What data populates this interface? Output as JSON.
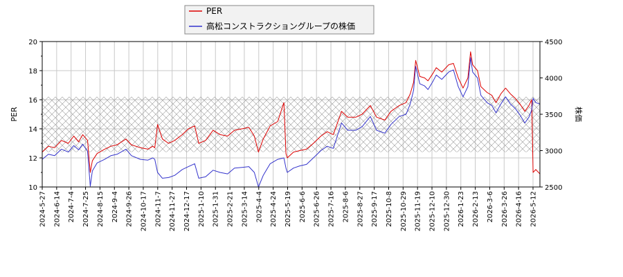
{
  "chart_data": {
    "type": "line",
    "legend": {
      "placement": "top-center",
      "entries": [
        {
          "label": "PER",
          "color": "#dd0000"
        },
        {
          "label": "高松コンストラクショングループの株価",
          "color": "#3333cc"
        }
      ]
    },
    "ylabel_left": "PER",
    "ylabel_right": "株価",
    "ylim_left": [
      10,
      20
    ],
    "ylim_right": [
      2500,
      4500
    ],
    "yticks_left": [
      "10",
      "12",
      "14",
      "16",
      "18",
      "20"
    ],
    "yticks_right": [
      "2500",
      "3000",
      "3500",
      "4000",
      "4500"
    ],
    "x_tick_labels": [
      "2024-5-27",
      "2024-6-14",
      "2024-7-4",
      "2024-7-25",
      "2024-8-15",
      "2024-9-4",
      "2024-9-26",
      "2024-10-17",
      "2024-11-7",
      "2024-11-27",
      "2024-12-17",
      "2025-1-10",
      "2025-1-31",
      "2025-2-21",
      "2025-3-14",
      "2025-4-4",
      "2025-4-24",
      "2025-5-19",
      "2025-6-6",
      "2025-6-26",
      "2025-7-16",
      "2025-8-6",
      "2025-8-27",
      "2025-9-17",
      "2025-10-8",
      "2025-10-29",
      "2025-11-19",
      "2025-12-10",
      "2025-12-30",
      "2026-1-23",
      "2026-2-13",
      "2026-3-6",
      "2026-3-26",
      "2026-4-16",
      "2026-5-12"
    ],
    "x_start": "2024-5-27",
    "x_end": "2026-5-22",
    "shaded_band_per": [
      12.4,
      16.2
    ],
    "grid": true,
    "series": [
      {
        "name": "PER",
        "color": "#dd0000",
        "axis": "left",
        "points": [
          [
            "2024-5-27",
            12.4
          ],
          [
            "2024-6-5",
            12.8
          ],
          [
            "2024-6-14",
            12.7
          ],
          [
            "2024-6-24",
            13.2
          ],
          [
            "2024-7-4",
            13.0
          ],
          [
            "2024-7-12",
            13.5
          ],
          [
            "2024-7-19",
            13.1
          ],
          [
            "2024-7-25",
            13.6
          ],
          [
            "2024-8-1",
            13.2
          ],
          [
            "2024-8-5",
            11.0
          ],
          [
            "2024-8-8",
            11.8
          ],
          [
            "2024-8-15",
            12.3
          ],
          [
            "2024-8-26",
            12.6
          ],
          [
            "2024-9-4",
            12.8
          ],
          [
            "2024-9-13",
            12.9
          ],
          [
            "2024-9-26",
            13.3
          ],
          [
            "2024-10-4",
            12.9
          ],
          [
            "2024-10-17",
            12.7
          ],
          [
            "2024-10-28",
            12.6
          ],
          [
            "2024-11-4",
            12.8
          ],
          [
            "2024-11-7",
            12.7
          ],
          [
            "2024-11-11",
            14.3
          ],
          [
            "2024-11-18",
            13.3
          ],
          [
            "2024-11-27",
            13.0
          ],
          [
            "2024-12-6",
            13.2
          ],
          [
            "2024-12-17",
            13.6
          ],
          [
            "2024-12-26",
            14.0
          ],
          [
            "2025-1-4",
            14.2
          ],
          [
            "2025-1-10",
            13.0
          ],
          [
            "2025-1-20",
            13.2
          ],
          [
            "2025-1-31",
            13.9
          ],
          [
            "2025-2-10",
            13.6
          ],
          [
            "2025-2-21",
            13.5
          ],
          [
            "2025-3-3",
            13.9
          ],
          [
            "2025-3-14",
            14.0
          ],
          [
            "2025-3-24",
            14.1
          ],
          [
            "2025-4-1",
            13.5
          ],
          [
            "2025-4-7",
            12.4
          ],
          [
            "2025-4-14",
            13.3
          ],
          [
            "2025-4-24",
            14.2
          ],
          [
            "2025-5-5",
            14.5
          ],
          [
            "2025-5-14",
            15.8
          ],
          [
            "2025-5-17",
            12.3
          ],
          [
            "2025-5-19",
            12.0
          ],
          [
            "2025-5-28",
            12.4
          ],
          [
            "2025-6-6",
            12.5
          ],
          [
            "2025-6-16",
            12.6
          ],
          [
            "2025-6-26",
            13.0
          ],
          [
            "2025-7-7",
            13.5
          ],
          [
            "2025-7-16",
            13.8
          ],
          [
            "2025-7-25",
            13.6
          ],
          [
            "2025-8-6",
            15.2
          ],
          [
            "2025-8-15",
            14.8
          ],
          [
            "2025-8-27",
            14.8
          ],
          [
            "2025-9-5",
            15.0
          ],
          [
            "2025-9-17",
            15.6
          ],
          [
            "2025-9-26",
            14.8
          ],
          [
            "2025-10-8",
            14.6
          ],
          [
            "2025-10-17",
            15.2
          ],
          [
            "2025-10-29",
            15.6
          ],
          [
            "2025-11-8",
            15.8
          ],
          [
            "2025-11-14",
            16.4
          ],
          [
            "2025-11-19",
            17.2
          ],
          [
            "2025-11-22",
            18.7
          ],
          [
            "2025-11-28",
            17.6
          ],
          [
            "2025-12-5",
            17.5
          ],
          [
            "2025-12-10",
            17.3
          ],
          [
            "2025-12-17",
            17.8
          ],
          [
            "2025-12-22",
            18.2
          ],
          [
            "2025-12-30",
            17.9
          ],
          [
            "2026-1-9",
            18.4
          ],
          [
            "2026-1-16",
            18.5
          ],
          [
            "2026-1-23",
            17.5
          ],
          [
            "2026-1-30",
            16.8
          ],
          [
            "2026-2-6",
            17.5
          ],
          [
            "2026-2-10",
            19.3
          ],
          [
            "2026-2-13",
            18.4
          ],
          [
            "2026-2-20",
            18.0
          ],
          [
            "2026-2-25",
            16.9
          ],
          [
            "2026-3-6",
            16.5
          ],
          [
            "2026-3-13",
            16.3
          ],
          [
            "2026-3-19",
            15.8
          ],
          [
            "2026-3-26",
            16.4
          ],
          [
            "2026-4-2",
            16.8
          ],
          [
            "2026-4-9",
            16.4
          ],
          [
            "2026-4-16",
            16.1
          ],
          [
            "2026-4-23",
            15.7
          ],
          [
            "2026-4-30",
            15.2
          ],
          [
            "2026-5-6",
            15.6
          ],
          [
            "2026-5-10",
            16.0
          ],
          [
            "2026-5-12",
            11.0
          ],
          [
            "2026-5-16",
            11.2
          ],
          [
            "2026-5-22",
            10.9
          ]
        ]
      },
      {
        "name": "高松コンストラクショングループの株価",
        "color": "#3333cc",
        "axis": "right",
        "points": [
          [
            "2024-5-27",
            2880
          ],
          [
            "2024-6-5",
            2950
          ],
          [
            "2024-6-14",
            2930
          ],
          [
            "2024-6-24",
            3020
          ],
          [
            "2024-7-4",
            2980
          ],
          [
            "2024-7-12",
            3070
          ],
          [
            "2024-7-19",
            3010
          ],
          [
            "2024-7-25",
            3090
          ],
          [
            "2024-8-1",
            2990
          ],
          [
            "2024-8-5",
            2510
          ],
          [
            "2024-8-8",
            2720
          ],
          [
            "2024-8-15",
            2830
          ],
          [
            "2024-8-26",
            2880
          ],
          [
            "2024-9-4",
            2930
          ],
          [
            "2024-9-13",
            2950
          ],
          [
            "2024-9-26",
            3020
          ],
          [
            "2024-10-4",
            2930
          ],
          [
            "2024-10-17",
            2880
          ],
          [
            "2024-10-28",
            2870
          ],
          [
            "2024-11-4",
            2900
          ],
          [
            "2024-11-7",
            2880
          ],
          [
            "2024-11-11",
            2700
          ],
          [
            "2024-11-18",
            2620
          ],
          [
            "2024-11-27",
            2630
          ],
          [
            "2024-12-6",
            2660
          ],
          [
            "2024-12-17",
            2740
          ],
          [
            "2024-12-26",
            2780
          ],
          [
            "2025-1-4",
            2820
          ],
          [
            "2025-1-10",
            2620
          ],
          [
            "2025-1-20",
            2640
          ],
          [
            "2025-1-31",
            2730
          ],
          [
            "2025-2-10",
            2700
          ],
          [
            "2025-2-21",
            2680
          ],
          [
            "2025-3-3",
            2760
          ],
          [
            "2025-3-14",
            2770
          ],
          [
            "2025-3-24",
            2780
          ],
          [
            "2025-4-1",
            2700
          ],
          [
            "2025-4-7",
            2500
          ],
          [
            "2025-4-14",
            2660
          ],
          [
            "2025-4-24",
            2820
          ],
          [
            "2025-5-5",
            2880
          ],
          [
            "2025-5-14",
            2900
          ],
          [
            "2025-5-17",
            2760
          ],
          [
            "2025-5-19",
            2700
          ],
          [
            "2025-5-28",
            2760
          ],
          [
            "2025-6-6",
            2790
          ],
          [
            "2025-6-16",
            2810
          ],
          [
            "2025-6-26",
            2900
          ],
          [
            "2025-7-7",
            3000
          ],
          [
            "2025-7-16",
            3060
          ],
          [
            "2025-7-25",
            3030
          ],
          [
            "2025-8-6",
            3380
          ],
          [
            "2025-8-15",
            3280
          ],
          [
            "2025-8-27",
            3280
          ],
          [
            "2025-9-5",
            3330
          ],
          [
            "2025-9-17",
            3470
          ],
          [
            "2025-9-26",
            3280
          ],
          [
            "2025-10-8",
            3240
          ],
          [
            "2025-10-17",
            3360
          ],
          [
            "2025-10-29",
            3470
          ],
          [
            "2025-11-8",
            3500
          ],
          [
            "2025-11-14",
            3640
          ],
          [
            "2025-11-19",
            3830
          ],
          [
            "2025-11-22",
            4160
          ],
          [
            "2025-11-28",
            3920
          ],
          [
            "2025-12-5",
            3890
          ],
          [
            "2025-12-10",
            3840
          ],
          [
            "2025-12-17",
            3950
          ],
          [
            "2025-12-22",
            4040
          ],
          [
            "2025-12-30",
            3980
          ],
          [
            "2026-1-9",
            4080
          ],
          [
            "2026-1-16",
            4110
          ],
          [
            "2026-1-23",
            3880
          ],
          [
            "2026-1-30",
            3740
          ],
          [
            "2026-2-6",
            3880
          ],
          [
            "2026-2-10",
            4280
          ],
          [
            "2026-2-13",
            4080
          ],
          [
            "2026-2-20",
            4000
          ],
          [
            "2026-2-25",
            3760
          ],
          [
            "2026-3-6",
            3660
          ],
          [
            "2026-3-13",
            3620
          ],
          [
            "2026-3-19",
            3520
          ],
          [
            "2026-3-26",
            3640
          ],
          [
            "2026-4-2",
            3740
          ],
          [
            "2026-4-9",
            3640
          ],
          [
            "2026-4-16",
            3580
          ],
          [
            "2026-4-23",
            3490
          ],
          [
            "2026-4-30",
            3380
          ],
          [
            "2026-5-6",
            3460
          ],
          [
            "2026-5-10",
            3560
          ],
          [
            "2026-5-12",
            3720
          ],
          [
            "2026-5-16",
            3660
          ],
          [
            "2026-5-22",
            3640
          ]
        ]
      }
    ]
  }
}
